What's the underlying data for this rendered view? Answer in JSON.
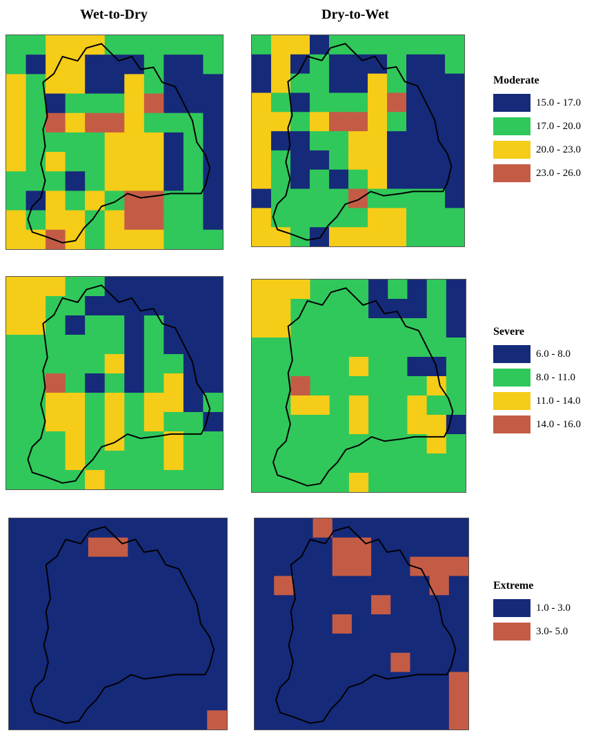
{
  "columns": [
    "Wet-to-Dry",
    "Dry-to-Wet"
  ],
  "colors": {
    "dark_blue": "#162a7a",
    "green": "#30c85a",
    "yellow": "#f5cc18",
    "red": "#c45c45",
    "outline": "#000000"
  },
  "rows": [
    {
      "key": "moderate",
      "legend_title": "Moderate",
      "classes": [
        {
          "label": "15.0 - 17.0",
          "color": "#162a7a"
        },
        {
          "label": "17.0 - 20.0",
          "color": "#30c85a"
        },
        {
          "label": "20.0 - 23.0",
          "color": "#f5cc18"
        },
        {
          "label": "23.0 - 26.0",
          "color": "#c45c45"
        }
      ],
      "grids": [
        [
          "GGYYYGGGGGG",
          "GBYYBBBGBBG",
          "YGYYBBYGBBB",
          "YGBGGGYRBBB",
          "YGRYRRYGGGB",
          "YGGGGYYYBGB",
          "YGYGGYYYBGB",
          "GGGBGYYYBGB",
          "GBYGYGRRGGB",
          "YGYYGYRRGGB",
          "YYRYGYYYGGG"
        ],
        [
          "GYYBGGGGGGG",
          "BYBGBBBGBBG",
          "BYGGBBYGBBB",
          "YGBGGGYRBBB",
          "YYGYRRYGBBB",
          "YBBGGYYBBBB",
          "YGBBGYYBBBB",
          "YGBGBGYBBBB",
          "BGGGGRGGGGB",
          "YGGGGGYYGGG",
          "YYGBYYYYGGG"
        ]
      ]
    },
    {
      "key": "severe",
      "legend_title": "Severe",
      "classes": [
        {
          "label": "6.0 - 8.0",
          "color": "#162a7a"
        },
        {
          "label": "8.0 - 11.0",
          "color": "#30c85a"
        },
        {
          "label": "11.0 - 14.0",
          "color": "#f5cc18"
        },
        {
          "label": "14.0 - 16.0",
          "color": "#c45c45"
        }
      ],
      "grids": [
        [
          "YYYGGBBBBBB",
          "YYGGBBBBBBB",
          "YYGBGGBGBBB",
          "GGGGGGBGBBB",
          "GGGGGYBGGBB",
          "GGRGBGBGYBB",
          "GGYYGYGYYBG",
          "GGYYGYGYGGB",
          "GGGYGYGGYGG",
          "GGGYGGGGYGG",
          "GGGGYGGGGGG"
        ],
        [
          "YYYGGGBGBGB",
          "YYGGGGBBBGB",
          "YYGGGGGGGGB",
          "GGGGGGGGGGG",
          "GGGGGYGGBBG",
          "GGRGGGGGGYG",
          "GGYYGYGGYGG",
          "GGGGGYGGYYB",
          "GGGGGGGGGYG",
          "GGGGGGGGGGG",
          "GGGGGYGGGGG"
        ]
      ]
    },
    {
      "key": "extreme",
      "legend_title": "Extreme",
      "classes": [
        {
          "label": "1.0 - 3.0",
          "color": "#162a7a"
        },
        {
          "label": "3.0- 5.0",
          "color": "#c45c45"
        }
      ],
      "grids": [
        [
          "BBBBBBBBBBB",
          "BBBBRRBBBBB",
          "BBBBBBBBBBB",
          "BBBBBBBBBBB",
          "BBBBBBBBBBB",
          "BBBBBBBBBBB",
          "BBBBBBBBBBB",
          "BBBBBBBBBBB",
          "BBBBBBBBBBB",
          "BBBBBBBBBBB",
          "BBBBBBBBBBR"
        ],
        [
          "BBBRBBBBBBB",
          "BBBBRRBBBBB",
          "BBBBRRBBRRR",
          "BRBBBBBBBRB",
          "BBBBBBRBBBB",
          "BBBBRBBBBBB",
          "BBBBBBBBBBB",
          "BBBBBBBRBBB",
          "BBBBBBBBBBR",
          "BBBBBBBBBBR",
          "BBBBBBBBBBR"
        ]
      ]
    }
  ]
}
